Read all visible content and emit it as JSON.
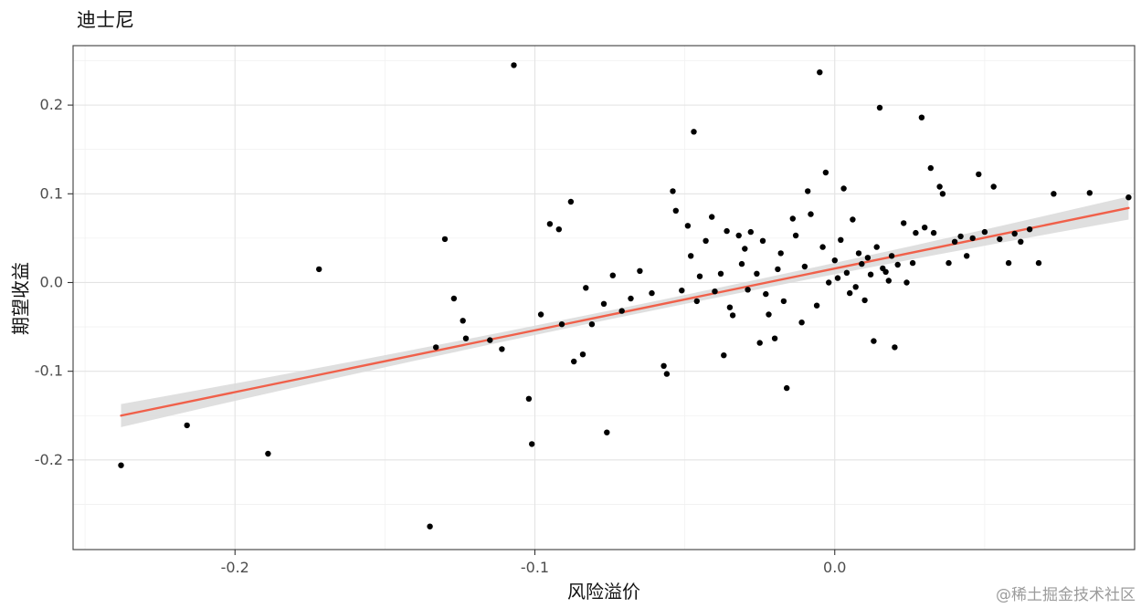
{
  "page": {
    "watermark": "@稀土掘金技术社区"
  },
  "chart_data": {
    "type": "scatter",
    "title": "迪士尼",
    "xlabel": "风险溢价",
    "ylabel": "期望收益",
    "xlim": [
      -0.254,
      0.1
    ],
    "ylim": [
      -0.301,
      0.267
    ],
    "x_ticks": [
      -0.2,
      -0.1,
      0.0
    ],
    "x_tick_labels": [
      "-0.2",
      "-0.1",
      "0.0"
    ],
    "x_minor": [
      -0.25,
      -0.15,
      -0.05,
      0.05
    ],
    "y_ticks": [
      0.2,
      0.1,
      0.0,
      -0.1,
      -0.2
    ],
    "y_tick_labels": [
      "0.2",
      "0.1",
      "0.0",
      "-0.1",
      "-0.2"
    ],
    "y_minor": [
      0.25,
      0.15,
      0.05,
      -0.05,
      -0.15,
      -0.25
    ],
    "grid": true,
    "legend": "none",
    "point_color": "#000000",
    "line_color": "#f0604a",
    "band_color": "#d9d9d9",
    "grid_major_color": "#e3e3e3",
    "grid_minor_color": "#f1f1f1",
    "panel_border_color": "#4d4d4d",
    "tick_label_color": "#4d4d4d",
    "regression": {
      "x0": -0.238,
      "y0": -0.15,
      "x1": 0.098,
      "y1": 0.084,
      "band_half_width_mid": 0.005,
      "band_half_width_end": 0.013
    },
    "points": [
      [
        -0.238,
        -0.206
      ],
      [
        -0.216,
        -0.161
      ],
      [
        -0.189,
        -0.193
      ],
      [
        -0.172,
        0.015
      ],
      [
        -0.135,
        -0.275
      ],
      [
        -0.133,
        -0.073
      ],
      [
        -0.13,
        0.049
      ],
      [
        -0.127,
        -0.018
      ],
      [
        -0.124,
        -0.043
      ],
      [
        -0.123,
        -0.063
      ],
      [
        -0.115,
        -0.065
      ],
      [
        -0.111,
        -0.075
      ],
      [
        -0.107,
        0.245
      ],
      [
        -0.102,
        -0.131
      ],
      [
        -0.101,
        -0.182
      ],
      [
        -0.098,
        -0.036
      ],
      [
        -0.095,
        0.066
      ],
      [
        -0.092,
        0.06
      ],
      [
        -0.091,
        -0.047
      ],
      [
        -0.088,
        0.091
      ],
      [
        -0.087,
        -0.089
      ],
      [
        -0.084,
        -0.081
      ],
      [
        -0.083,
        -0.006
      ],
      [
        -0.081,
        -0.047
      ],
      [
        -0.077,
        -0.024
      ],
      [
        -0.076,
        -0.169
      ],
      [
        -0.074,
        0.008
      ],
      [
        -0.071,
        -0.032
      ],
      [
        -0.068,
        -0.018
      ],
      [
        -0.065,
        0.013
      ],
      [
        -0.061,
        -0.012
      ],
      [
        -0.057,
        -0.094
      ],
      [
        -0.056,
        -0.103
      ],
      [
        -0.054,
        0.103
      ],
      [
        -0.053,
        0.081
      ],
      [
        -0.051,
        -0.009
      ],
      [
        -0.049,
        0.064
      ],
      [
        -0.048,
        0.03
      ],
      [
        -0.047,
        0.17
      ],
      [
        -0.046,
        -0.021
      ],
      [
        -0.045,
        0.007
      ],
      [
        -0.043,
        0.047
      ],
      [
        -0.041,
        0.074
      ],
      [
        -0.04,
        -0.01
      ],
      [
        -0.038,
        0.01
      ],
      [
        -0.037,
        -0.082
      ],
      [
        -0.036,
        0.058
      ],
      [
        -0.035,
        -0.028
      ],
      [
        -0.034,
        -0.037
      ],
      [
        -0.032,
        0.053
      ],
      [
        -0.031,
        0.021
      ],
      [
        -0.03,
        0.038
      ],
      [
        -0.029,
        -0.008
      ],
      [
        -0.028,
        0.057
      ],
      [
        -0.026,
        0.01
      ],
      [
        -0.025,
        -0.068
      ],
      [
        -0.024,
        0.047
      ],
      [
        -0.023,
        -0.013
      ],
      [
        -0.022,
        -0.036
      ],
      [
        -0.02,
        -0.063
      ],
      [
        -0.019,
        0.015
      ],
      [
        -0.018,
        0.033
      ],
      [
        -0.017,
        -0.021
      ],
      [
        -0.016,
        -0.119
      ],
      [
        -0.014,
        0.072
      ],
      [
        -0.013,
        0.053
      ],
      [
        -0.011,
        -0.045
      ],
      [
        -0.01,
        0.018
      ],
      [
        -0.009,
        0.103
      ],
      [
        -0.008,
        0.077
      ],
      [
        -0.006,
        -0.026
      ],
      [
        -0.005,
        0.237
      ],
      [
        -0.004,
        0.04
      ],
      [
        -0.003,
        0.124
      ],
      [
        -0.002,
        0.0
      ],
      [
        0.0,
        0.025
      ],
      [
        0.001,
        0.005
      ],
      [
        0.002,
        0.048
      ],
      [
        0.003,
        0.106
      ],
      [
        0.004,
        0.011
      ],
      [
        0.005,
        -0.012
      ],
      [
        0.006,
        0.071
      ],
      [
        0.007,
        -0.005
      ],
      [
        0.008,
        0.033
      ],
      [
        0.009,
        0.021
      ],
      [
        0.01,
        -0.02
      ],
      [
        0.011,
        0.028
      ],
      [
        0.012,
        0.009
      ],
      [
        0.013,
        -0.066
      ],
      [
        0.014,
        0.04
      ],
      [
        0.015,
        0.197
      ],
      [
        0.016,
        0.016
      ],
      [
        0.017,
        0.012
      ],
      [
        0.018,
        0.002
      ],
      [
        0.019,
        0.03
      ],
      [
        0.02,
        -0.073
      ],
      [
        0.021,
        0.02
      ],
      [
        0.023,
        0.067
      ],
      [
        0.024,
        0.0
      ],
      [
        0.026,
        0.022
      ],
      [
        0.027,
        0.056
      ],
      [
        0.029,
        0.186
      ],
      [
        0.03,
        0.062
      ],
      [
        0.032,
        0.129
      ],
      [
        0.033,
        0.056
      ],
      [
        0.035,
        0.108
      ],
      [
        0.036,
        0.1
      ],
      [
        0.038,
        0.022
      ],
      [
        0.04,
        0.046
      ],
      [
        0.042,
        0.052
      ],
      [
        0.044,
        0.03
      ],
      [
        0.046,
        0.05
      ],
      [
        0.048,
        0.122
      ],
      [
        0.05,
        0.057
      ],
      [
        0.053,
        0.108
      ],
      [
        0.055,
        0.049
      ],
      [
        0.058,
        0.022
      ],
      [
        0.06,
        0.055
      ],
      [
        0.062,
        0.046
      ],
      [
        0.065,
        0.06
      ],
      [
        0.068,
        0.022
      ],
      [
        0.073,
        0.1
      ],
      [
        0.085,
        0.101
      ],
      [
        0.098,
        0.096
      ]
    ]
  }
}
